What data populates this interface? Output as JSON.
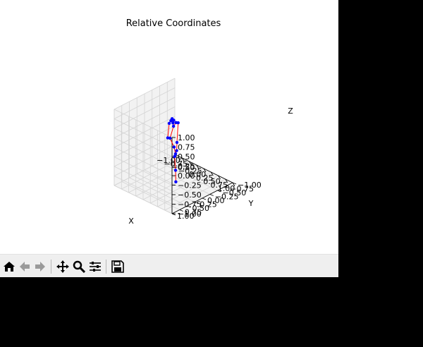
{
  "chart_data": {
    "type": "scatter3d",
    "title": "Relative Coordinates",
    "xlabel": "X",
    "ylabel": "Y",
    "zlabel": "Z",
    "xlim": [
      -1.0,
      1.0
    ],
    "ylim": [
      -1.0,
      1.0
    ],
    "zlim": [
      -1.0,
      1.0
    ],
    "x_ticks": [
      "−1.00",
      "−0.75",
      "−0.50",
      "−0.25",
      "0.00",
      "0.25",
      "0.50",
      "0.75",
      "1.00"
    ],
    "y_ticks": [
      "−1.00",
      "−0.75",
      "−0.50",
      "−0.25",
      "0.00",
      "0.25",
      "0.50",
      "0.75",
      "1.00"
    ],
    "z_ticks": [
      "−1.00",
      "−0.75",
      "−0.50",
      "−0.25",
      "0.00",
      "0.25",
      "0.50",
      "0.75",
      "1.00"
    ],
    "grid": true,
    "pane_color": "#f2f2f2",
    "point_color": "#0000ff",
    "line_color": "#ff0000",
    "points": [
      {
        "x": 0.03,
        "y": -0.05,
        "z": -0.95
      },
      {
        "x": 0.02,
        "y": -0.05,
        "z": -0.65
      },
      {
        "x": -0.01,
        "y": -0.05,
        "z": -0.3
      },
      {
        "x": 0.02,
        "y": -0.05,
        "z": -0.22
      },
      {
        "x": 0.06,
        "y": -0.05,
        "z": -0.12
      },
      {
        "x": -0.03,
        "y": -0.05,
        "z": -0.06
      },
      {
        "x": 0.07,
        "y": -0.05,
        "z": 0.1
      },
      {
        "x": 0.11,
        "y": -0.05,
        "z": 0.63
      },
      {
        "x": -0.17,
        "y": -0.05,
        "z": 0.12
      },
      {
        "x": -0.05,
        "y": -0.05,
        "z": 0.48
      },
      {
        "x": -0.07,
        "y": -0.05,
        "z": 0.56
      },
      {
        "x": -0.1,
        "y": -0.05,
        "z": 0.66
      },
      {
        "x": -0.14,
        "y": -0.05,
        "z": 0.59
      },
      {
        "x": 0.04,
        "y": -0.05,
        "z": 0.61
      },
      {
        "x": -0.04,
        "y": -0.05,
        "z": 0.64
      },
      {
        "x": -0.2,
        "y": -0.05,
        "z": 0.5
      },
      {
        "x": -0.25,
        "y": -0.05,
        "z": 0.1
      }
    ],
    "edges": [
      [
        0,
        1
      ],
      [
        1,
        2
      ],
      [
        2,
        3
      ],
      [
        3,
        4
      ],
      [
        3,
        5
      ],
      [
        4,
        6
      ],
      [
        6,
        7
      ],
      [
        5,
        8
      ],
      [
        8,
        9
      ],
      [
        9,
        10
      ],
      [
        10,
        11
      ],
      [
        11,
        12
      ],
      [
        12,
        15
      ],
      [
        15,
        16
      ],
      [
        13,
        7
      ],
      [
        13,
        14
      ],
      [
        14,
        10
      ],
      [
        9,
        13
      ]
    ]
  },
  "toolbar": {
    "buttons": [
      "home-icon",
      "back-icon",
      "forward-icon",
      "pan-icon",
      "zoom-icon",
      "configure-subplots-icon",
      "save-icon"
    ]
  }
}
